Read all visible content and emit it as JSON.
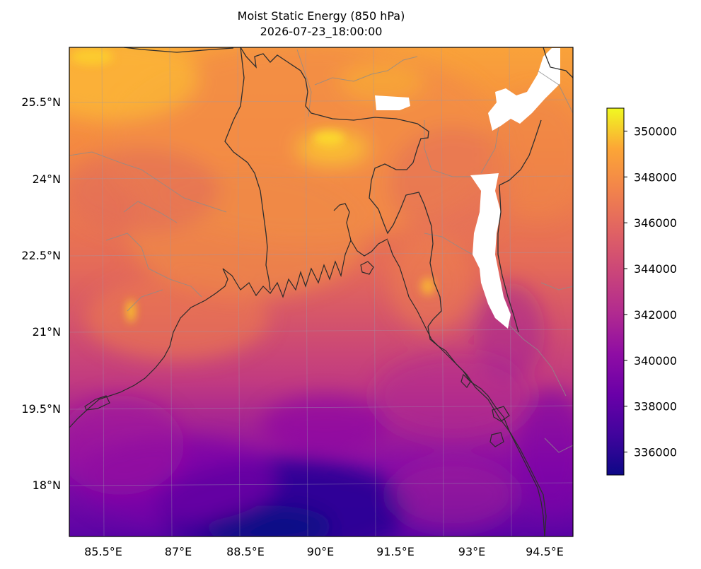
{
  "figure": {
    "title": "Moist Static Energy (850 hPa)",
    "subtitle": "2026-07-23_18:00:00"
  },
  "map": {
    "projection": "PlateCarree",
    "lon_range": [
      84.5,
      95.5
    ],
    "lat_range": [
      16.75,
      26.85
    ],
    "lon_ticks": [
      85.5,
      87,
      88.5,
      90,
      91.5,
      93,
      94.5
    ],
    "lon_tick_labels": [
      "85.5°E",
      "87°E",
      "88.5°E",
      "90°E",
      "91.5°E",
      "93°E",
      "94.5°E"
    ],
    "lat_ticks": [
      18,
      19.5,
      21,
      22.5,
      24,
      25.5
    ],
    "lat_tick_labels": [
      "18°N",
      "19.5°N",
      "21°N",
      "22.5°N",
      "24°N",
      "25.5°N"
    ],
    "gridlines": true,
    "features": [
      "coastline",
      "country-borders",
      "state-borders"
    ]
  },
  "colorbar": {
    "colormap": "plasma",
    "vmin": 335000,
    "vmax": 351000,
    "ticks": [
      336000,
      338000,
      340000,
      342000,
      344000,
      346000,
      348000,
      350000
    ],
    "tick_labels": [
      "336000",
      "338000",
      "340000",
      "342000",
      "344000",
      "346000",
      "348000",
      "350000"
    ],
    "placement": "right"
  },
  "chart_data": {
    "type": "heatmap",
    "title": "Moist Static Energy (850 hPa)",
    "subtitle": "2026-07-23_18:00:00",
    "units": "",
    "x_range": [
      84.5,
      95.5
    ],
    "y_range": [
      16.75,
      26.85
    ],
    "value_range": [
      335000,
      351000
    ],
    "approx_regional_values": [
      {
        "lon": 89.0,
        "lat": 17.0,
        "value": 336000
      },
      {
        "lon": 90.0,
        "lat": 18.5,
        "value": 338500
      },
      {
        "lon": 86.0,
        "lat": 19.0,
        "value": 340500
      },
      {
        "lon": 88.0,
        "lat": 21.0,
        "value": 345000
      },
      {
        "lon": 90.0,
        "lat": 23.5,
        "value": 346000
      },
      {
        "lon": 85.5,
        "lat": 26.5,
        "value": 348500
      },
      {
        "lon": 89.5,
        "lat": 24.7,
        "value": 349000
      },
      {
        "lon": 93.5,
        "lat": 21.5,
        "value": 343000
      },
      {
        "lon": 94.5,
        "lat": 18.0,
        "value": 340500
      },
      {
        "lon": 92.5,
        "lat": 26.0,
        "value": 346000
      }
    ],
    "missing_regions": [
      "white patches over high terrain in northeast India and the Bangladesh–India–Myanmar hills"
    ]
  }
}
